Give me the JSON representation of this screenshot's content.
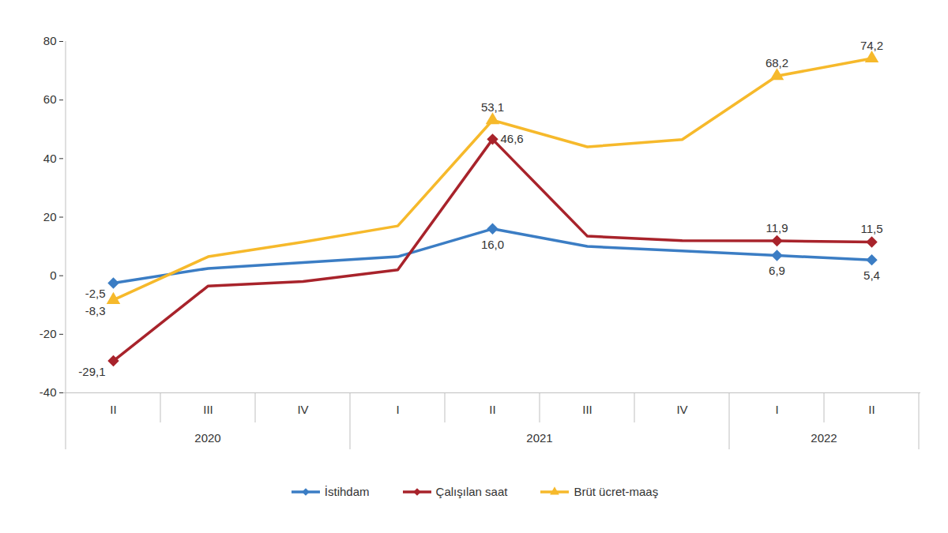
{
  "chart_data": {
    "type": "line",
    "categories": [
      "II",
      "III",
      "IV",
      "I",
      "II",
      "III",
      "IV",
      "I",
      "II"
    ],
    "x_groups": [
      "2020",
      "2020",
      "2020",
      "2021",
      "2021",
      "2021",
      "2021",
      "2022",
      "2022"
    ],
    "ylim": [
      -40,
      80
    ],
    "yticks": [
      -40,
      -20,
      0,
      20,
      40,
      60,
      80
    ],
    "grid": false,
    "legend": "bottom",
    "data_labels": true,
    "series": [
      {
        "name": "İstihdam",
        "color": "#3B7DC4",
        "marker": "diamond",
        "values": [
          -2.5,
          2.5,
          4.5,
          6.5,
          16.0,
          10.0,
          8.5,
          6.9,
          5.4
        ],
        "value_labels": [
          "-2,5",
          null,
          null,
          null,
          "16,0",
          null,
          null,
          "6,9",
          "5,4"
        ]
      },
      {
        "name": "Çalışılan saat",
        "color": "#A8232B",
        "marker": "diamond",
        "values": [
          -29.1,
          -3.5,
          -2.0,
          2.0,
          46.6,
          13.5,
          12.0,
          11.9,
          11.5
        ],
        "value_labels": [
          "-29,1",
          null,
          null,
          null,
          "46,6",
          null,
          null,
          "11,9",
          "11,5"
        ]
      },
      {
        "name": "Brüt ücret-maaş",
        "color": "#F6B92B",
        "marker": "triangle",
        "values": [
          -8.3,
          6.5,
          11.5,
          17.0,
          53.1,
          44.0,
          46.5,
          68.2,
          74.2
        ],
        "value_labels": [
          "-8,3",
          null,
          null,
          null,
          "53,1",
          null,
          null,
          "68,2",
          "74,2"
        ]
      }
    ]
  }
}
